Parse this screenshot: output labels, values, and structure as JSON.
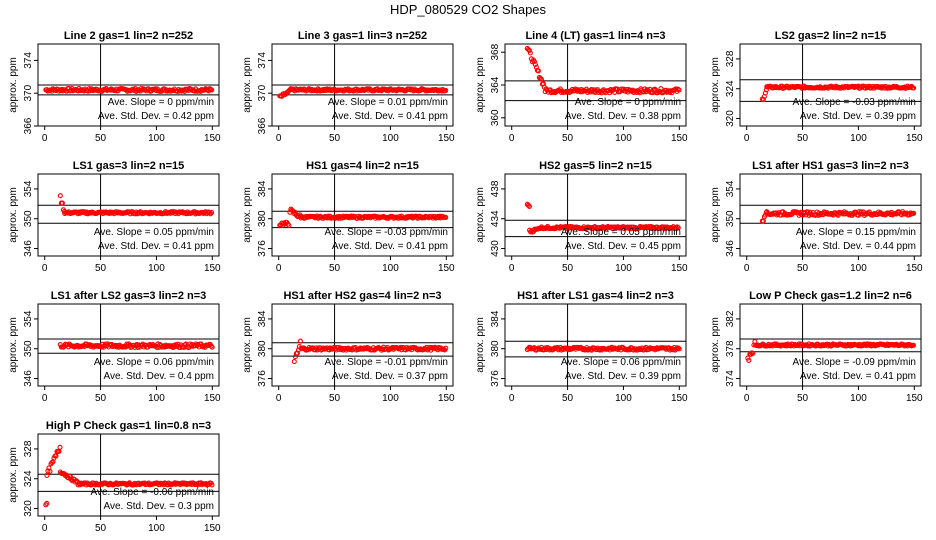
{
  "figure": {
    "title": "HDP_080529  CO2 Shapes",
    "ylabel": "approx. ppm",
    "colors": {
      "points": "#ff0000",
      "axes": "#000000",
      "background": "#ffffff"
    }
  },
  "chart_data": [
    {
      "type": "scatter",
      "title": "Line 2 gas=1 lin=2 n=252",
      "xlim": [
        0,
        150
      ],
      "ylim": [
        366,
        376
      ],
      "xticks": [
        0,
        50,
        100,
        150
      ],
      "yticks": [
        366,
        370,
        374
      ],
      "hlines": [
        371.0,
        369.8
      ],
      "vline": 50,
      "slope": "0",
      "sd": "0.42",
      "segments": [
        {
          "x": [
            1,
            150
          ],
          "base": 370.4,
          "noise": 0.18,
          "step": 0.9
        }
      ]
    },
    {
      "type": "scatter",
      "title": "Line 3 gas=1 lin=3 n=252",
      "xlim": [
        0,
        150
      ],
      "ylim": [
        366,
        376
      ],
      "xticks": [
        0,
        50,
        100,
        150
      ],
      "yticks": [
        366,
        370,
        374
      ],
      "hlines": [
        371.0,
        369.8
      ],
      "vline": 50,
      "slope": "0.01",
      "sd": "0.41",
      "segments": [
        {
          "x": [
            1,
            10
          ],
          "start": 369.5,
          "base": 370.2,
          "noise": 0.2,
          "step": 0.9
        },
        {
          "x": [
            10,
            150
          ],
          "base": 370.4,
          "noise": 0.15,
          "step": 0.9
        }
      ]
    },
    {
      "type": "scatter",
      "title": "Line 4 (LT) gas=1 lin=4 n=3",
      "xlim": [
        0,
        150
      ],
      "ylim": [
        359,
        369
      ],
      "xticks": [
        0,
        50,
        100,
        150
      ],
      "yticks": [
        360,
        364,
        368
      ],
      "hlines": [
        364.5,
        362.1
      ],
      "vline": 50,
      "slope": "0",
      "sd": "0.38",
      "segments": [
        {
          "x": [
            14,
            30
          ],
          "start": 368.5,
          "base": 363.6,
          "noise": 0.3,
          "step": 0.9
        },
        {
          "x": [
            30,
            150
          ],
          "base": 363.3,
          "noise": 0.25,
          "step": 0.9
        }
      ]
    },
    {
      "type": "scatter",
      "title": "LS2 gas=2 lin=2 n=15",
      "xlim": [
        0,
        150
      ],
      "ylim": [
        319,
        330
      ],
      "xticks": [
        0,
        50,
        100,
        150
      ],
      "yticks": [
        320,
        324,
        328
      ],
      "hlines": [
        325.2,
        322.3
      ],
      "vline": 50,
      "slope": "-0.03",
      "sd": "0.39",
      "segments": [
        {
          "x": [
            14,
            18
          ],
          "start": 322.5,
          "base": 324.0,
          "noise": 0.3,
          "step": 0.9
        },
        {
          "x": [
            18,
            150
          ],
          "base": 324.2,
          "noise": 0.15,
          "step": 0.9
        }
      ]
    },
    {
      "type": "scatter",
      "title": "LS1 gas=3 lin=2 n=15",
      "xlim": [
        0,
        150
      ],
      "ylim": [
        345,
        356
      ],
      "xticks": [
        0,
        50,
        100,
        150
      ],
      "yticks": [
        346,
        350,
        354
      ],
      "hlines": [
        351.8,
        349.4
      ],
      "vline": 50,
      "slope": "0.05",
      "sd": "0.41",
      "segments": [
        {
          "x": [
            14,
            18
          ],
          "start": 352.8,
          "base": 350.8,
          "noise": 0.3,
          "step": 0.9
        },
        {
          "x": [
            18,
            150
          ],
          "base": 350.8,
          "noise": 0.15,
          "step": 0.9
        }
      ]
    },
    {
      "type": "scatter",
      "title": "HS1 gas=4 lin=2 n=15",
      "xlim": [
        0,
        150
      ],
      "ylim": [
        375,
        386
      ],
      "xticks": [
        0,
        50,
        100,
        150
      ],
      "yticks": [
        376,
        380,
        384
      ],
      "hlines": [
        381.0,
        378.8
      ],
      "vline": 50,
      "slope": "-0.03",
      "sd": "0.41",
      "segments": [
        {
          "x": [
            1,
            10
          ],
          "base": 379.3,
          "noise": 0.25,
          "step": 0.9
        },
        {
          "x": [
            10,
            20
          ],
          "start": 381.1,
          "base": 380.2,
          "noise": 0.3,
          "step": 0.9
        },
        {
          "x": [
            20,
            150
          ],
          "base": 380.2,
          "noise": 0.15,
          "step": 0.9
        }
      ]
    },
    {
      "type": "scatter",
      "title": "HS2 gas=5 lin=2 n=15",
      "xlim": [
        0,
        150
      ],
      "ylim": [
        429,
        440
      ],
      "xticks": [
        0,
        50,
        100,
        150
      ],
      "yticks": [
        430,
        434,
        438
      ],
      "hlines": [
        433.8,
        431.6
      ],
      "vline": 50,
      "slope": "0.05",
      "sd": "0.45",
      "segments": [
        {
          "x": [
            14,
            16
          ],
          "base": 435.8,
          "noise": 0.2,
          "step": 0.9
        },
        {
          "x": [
            16,
            24
          ],
          "start": 432.3,
          "base": 432.6,
          "noise": 0.2,
          "step": 0.9
        },
        {
          "x": [
            24,
            150
          ],
          "base": 432.8,
          "noise": 0.15,
          "step": 0.9
        }
      ]
    },
    {
      "type": "scatter",
      "title": "LS1 after HS1 gas=3 lin=2 n=3",
      "xlim": [
        0,
        150
      ],
      "ylim": [
        345,
        356
      ],
      "xticks": [
        0,
        50,
        100,
        150
      ],
      "yticks": [
        346,
        350,
        354
      ],
      "hlines": [
        351.8,
        349.4
      ],
      "vline": 50,
      "slope": "0.15",
      "sd": "0.44",
      "segments": [
        {
          "x": [
            14,
            18
          ],
          "start": 349.8,
          "base": 351.5,
          "noise": 0.5,
          "step": 0.9
        },
        {
          "x": [
            18,
            150
          ],
          "base": 350.7,
          "noise": 0.25,
          "step": 0.9
        }
      ]
    },
    {
      "type": "scatter",
      "title": "LS1 after LS2 gas=3 lin=2 n=3",
      "xlim": [
        0,
        150
      ],
      "ylim": [
        345,
        356
      ],
      "xticks": [
        0,
        50,
        100,
        150
      ],
      "yticks": [
        346,
        350,
        354
      ],
      "hlines": [
        351.3,
        349.4
      ],
      "vline": 50,
      "slope": "0.06",
      "sd": "0.4",
      "segments": [
        {
          "x": [
            14,
            150
          ],
          "base": 350.4,
          "noise": 0.25,
          "step": 0.9
        }
      ]
    },
    {
      "type": "scatter",
      "title": "HS1 after HS2 gas=4 lin=2 n=3",
      "xlim": [
        0,
        150
      ],
      "ylim": [
        375,
        386
      ],
      "xticks": [
        0,
        50,
        100,
        150
      ],
      "yticks": [
        376,
        380,
        384
      ],
      "hlines": [
        380.8,
        379.0
      ],
      "vline": 50,
      "slope": "-0.01",
      "sd": "0.37",
      "segments": [
        {
          "x": [
            14,
            20
          ],
          "start": 378.0,
          "base": 381.0,
          "noise": 0.6,
          "step": 0.9
        },
        {
          "x": [
            20,
            150
          ],
          "base": 380.0,
          "noise": 0.2,
          "step": 0.9
        }
      ]
    },
    {
      "type": "scatter",
      "title": "HS1 after LS1 gas=4 lin=2 n=3",
      "xlim": [
        0,
        150
      ],
      "ylim": [
        375,
        386
      ],
      "xticks": [
        0,
        50,
        100,
        150
      ],
      "yticks": [
        376,
        380,
        384
      ],
      "hlines": [
        381.0,
        378.9
      ],
      "vline": 50,
      "slope": "0.06",
      "sd": "0.39",
      "segments": [
        {
          "x": [
            14,
            150
          ],
          "base": 380.0,
          "noise": 0.2,
          "step": 0.9
        }
      ]
    },
    {
      "type": "scatter",
      "title": "Low P Check gas=1.2 lin=2 n=6",
      "xlim": [
        0,
        150
      ],
      "ylim": [
        373,
        384
      ],
      "xticks": [
        0,
        50,
        100,
        150
      ],
      "yticks": [
        374,
        378,
        382
      ],
      "hlines": [
        379.3,
        377.6
      ],
      "vline": 50,
      "slope": "-0.09",
      "sd": "0.41",
      "segments": [
        {
          "x": [
            1,
            8
          ],
          "start": 376.8,
          "base": 378.6,
          "noise": 0.6,
          "step": 0.9
        },
        {
          "x": [
            8,
            150
          ],
          "base": 378.5,
          "noise": 0.15,
          "step": 0.9
        }
      ]
    },
    {
      "type": "scatter",
      "title": "High P Check gas=1 lin=0.8 n=3",
      "xlim": [
        0,
        150
      ],
      "ylim": [
        319,
        330
      ],
      "xticks": [
        0,
        50,
        100,
        150
      ],
      "yticks": [
        320,
        324,
        328
      ],
      "hlines": [
        324.6,
        322.3
      ],
      "vline": 50,
      "slope": "-0.06",
      "sd": "0.3",
      "segments": [
        {
          "x": [
            1,
            2
          ],
          "base": 320.6,
          "noise": 0.1,
          "step": 0.9
        },
        {
          "x": [
            2,
            14
          ],
          "start": 324.5,
          "base": 328.3,
          "noise": 0.4,
          "step": 0.9
        },
        {
          "x": [
            14,
            30
          ],
          "start": 325.0,
          "base": 323.4,
          "noise": 0.2,
          "step": 0.9
        },
        {
          "x": [
            30,
            150
          ],
          "base": 323.3,
          "noise": 0.15,
          "step": 0.9
        }
      ]
    }
  ]
}
